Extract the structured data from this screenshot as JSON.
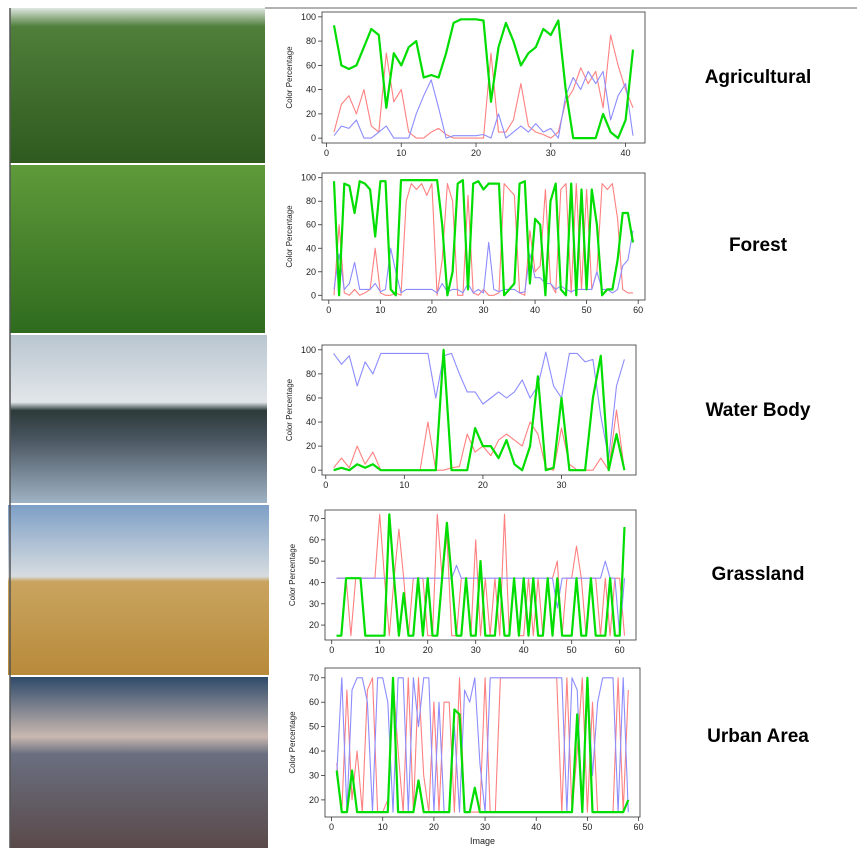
{
  "chart_data": [
    {
      "type": "line",
      "title": "Agricultural",
      "ylabel": "Color Percentage",
      "x": [
        1,
        2,
        3,
        4,
        5,
        6,
        7,
        8,
        9,
        10,
        11,
        12,
        13,
        14,
        15,
        16,
        17,
        18,
        19,
        20,
        21,
        22,
        23,
        24,
        25,
        26,
        27,
        28,
        29,
        30,
        31,
        32,
        33,
        34,
        35,
        36,
        37,
        38,
        39,
        40,
        41
      ],
      "series": [
        {
          "color": "#ff8080",
          "values": [
            5,
            28,
            35,
            20,
            40,
            10,
            5,
            70,
            30,
            40,
            5,
            0,
            0,
            5,
            8,
            3,
            0,
            0,
            0,
            0,
            0,
            70,
            5,
            5,
            15,
            45,
            10,
            5,
            3,
            0,
            5,
            30,
            40,
            58,
            45,
            55,
            25,
            85,
            60,
            40,
            25
          ]
        },
        {
          "color": "#8c8cff",
          "values": [
            2,
            10,
            8,
            15,
            0,
            0,
            5,
            10,
            0,
            0,
            0,
            20,
            35,
            48,
            25,
            0,
            2,
            2,
            2,
            2,
            3,
            0,
            20,
            0,
            5,
            10,
            5,
            12,
            5,
            8,
            0,
            35,
            50,
            40,
            55,
            45,
            55,
            15,
            35,
            45,
            2
          ]
        },
        {
          "color": "#00dd00",
          "values": [
            93,
            60,
            57,
            60,
            75,
            90,
            85,
            25,
            70,
            60,
            75,
            80,
            50,
            52,
            50,
            70,
            95,
            98,
            98,
            98,
            97,
            30,
            75,
            95,
            80,
            60,
            70,
            75,
            90,
            85,
            97,
            40,
            0,
            0,
            0,
            0,
            20,
            5,
            0,
            15,
            73
          ]
        }
      ],
      "xlim": [
        -0.6,
        42.6
      ],
      "xticks": [
        0,
        10,
        20,
        30,
        40
      ],
      "ylim": [
        -4,
        104
      ],
      "yticks": [
        0,
        20,
        40,
        60,
        80,
        100
      ]
    },
    {
      "type": "line",
      "title": "Forest",
      "ylabel": "Color Percentage",
      "x": [
        1,
        2,
        3,
        4,
        5,
        6,
        7,
        8,
        9,
        10,
        11,
        12,
        13,
        14,
        15,
        16,
        17,
        18,
        19,
        20,
        21,
        22,
        23,
        24,
        25,
        26,
        27,
        28,
        29,
        30,
        31,
        32,
        33,
        34,
        35,
        36,
        37,
        38,
        39,
        40,
        41,
        42,
        43,
        44,
        45,
        46,
        47,
        48,
        49,
        50,
        51,
        52,
        53,
        54,
        55,
        56,
        57,
        58,
        59
      ],
      "series": [
        {
          "color": "#ff8080",
          "values": [
            0,
            60,
            2,
            0,
            5,
            0,
            2,
            5,
            40,
            2,
            0,
            0,
            2,
            0,
            80,
            95,
            90,
            95,
            85,
            95,
            0,
            30,
            95,
            80,
            0,
            0,
            85,
            2,
            0,
            5,
            0,
            0,
            2,
            95,
            90,
            85,
            2,
            0,
            55,
            20,
            25,
            90,
            10,
            2,
            90,
            95,
            2,
            95,
            5,
            90,
            5,
            20,
            95,
            90,
            95,
            65,
            5,
            2,
            2
          ]
        },
        {
          "color": "#8c8cff",
          "values": [
            5,
            35,
            5,
            10,
            28,
            5,
            5,
            5,
            10,
            3,
            5,
            40,
            20,
            2,
            5,
            5,
            5,
            5,
            5,
            5,
            2,
            10,
            3,
            5,
            5,
            2,
            10,
            2,
            5,
            2,
            45,
            5,
            3,
            5,
            5,
            5,
            2,
            3,
            35,
            15,
            15,
            10,
            10,
            5,
            8,
            5,
            3,
            5,
            5,
            5,
            5,
            20,
            5,
            5,
            2,
            5,
            25,
            30,
            55
          ]
        },
        {
          "color": "#00dd00",
          "values": [
            97,
            0,
            95,
            93,
            70,
            97,
            95,
            90,
            50,
            97,
            97,
            5,
            0,
            98,
            98,
            98,
            98,
            98,
            98,
            98,
            98,
            60,
            0,
            20,
            95,
            98,
            5,
            95,
            97,
            90,
            95,
            95,
            95,
            0,
            5,
            10,
            95,
            97,
            10,
            65,
            60,
            0,
            80,
            95,
            5,
            0,
            95,
            0,
            90,
            5,
            90,
            60,
            0,
            5,
            5,
            30,
            70,
            70,
            45
          ]
        }
      ],
      "xlim": [
        -1.32,
        61.32
      ],
      "xticks": [
        0,
        10,
        20,
        30,
        40,
        50,
        60
      ],
      "ylim": [
        -4,
        104
      ],
      "yticks": [
        0,
        20,
        40,
        60,
        80,
        100
      ]
    },
    {
      "type": "line",
      "title": "Water Body",
      "ylabel": "Color Percentage",
      "x": [
        1,
        2,
        3,
        4,
        5,
        6,
        7,
        8,
        9,
        10,
        11,
        12,
        13,
        14,
        15,
        16,
        17,
        18,
        19,
        20,
        21,
        22,
        23,
        24,
        25,
        26,
        27,
        28,
        29,
        30,
        31,
        32,
        33,
        34,
        35,
        36,
        37,
        38
      ],
      "series": [
        {
          "color": "#ff8080",
          "values": [
            2,
            10,
            2,
            20,
            5,
            15,
            0,
            0,
            0,
            0,
            0,
            0,
            40,
            0,
            0,
            2,
            3,
            30,
            15,
            20,
            12,
            25,
            30,
            25,
            20,
            40,
            30,
            2,
            0,
            35,
            5,
            0,
            0,
            0,
            10,
            0,
            50,
            0
          ]
        },
        {
          "color": "#8c8cff",
          "values": [
            97,
            88,
            95,
            70,
            90,
            80,
            97,
            97,
            97,
            97,
            97,
            97,
            97,
            60,
            95,
            97,
            80,
            65,
            65,
            55,
            60,
            65,
            60,
            65,
            75,
            60,
            70,
            98,
            70,
            60,
            97,
            97,
            90,
            92,
            45,
            10,
            70,
            92
          ]
        },
        {
          "color": "#00dd00",
          "values": [
            0,
            2,
            0,
            5,
            2,
            5,
            0,
            0,
            0,
            0,
            0,
            0,
            0,
            0,
            100,
            0,
            0,
            0,
            35,
            20,
            20,
            10,
            25,
            5,
            0,
            20,
            78,
            0,
            2,
            60,
            0,
            0,
            0,
            60,
            95,
            0,
            30,
            0
          ]
        }
      ],
      "xlim": [
        -0.48,
        39.48
      ],
      "xticks": [
        0,
        10,
        20,
        30
      ],
      "ylim": [
        -4,
        104
      ],
      "yticks": [
        0,
        20,
        40,
        60,
        80,
        100
      ]
    },
    {
      "type": "line",
      "title": "Grassland",
      "ylabel": "Color Percentage",
      "x": [
        1,
        2,
        3,
        4,
        5,
        6,
        7,
        8,
        9,
        10,
        11,
        12,
        13,
        14,
        15,
        16,
        17,
        18,
        19,
        20,
        21,
        22,
        23,
        24,
        25,
        26,
        27,
        28,
        29,
        30,
        31,
        32,
        33,
        34,
        35,
        36,
        37,
        38,
        39,
        40,
        41,
        42,
        43,
        44,
        45,
        46,
        47,
        48,
        49,
        50,
        51,
        52,
        53,
        54,
        55,
        56,
        57,
        58,
        59,
        60,
        61
      ],
      "series": [
        {
          "color": "#ff8080",
          "values": [
            42,
            42,
            42,
            15,
            42,
            42,
            42,
            42,
            42,
            72,
            42,
            15,
            42,
            65,
            42,
            15,
            42,
            42,
            42,
            15,
            15,
            72,
            42,
            62,
            15,
            15,
            42,
            42,
            15,
            60,
            15,
            42,
            15,
            42,
            15,
            72,
            15,
            42,
            15,
            15,
            42,
            15,
            42,
            15,
            42,
            42,
            50,
            15,
            42,
            42,
            57,
            42,
            15,
            42,
            42,
            15,
            42,
            15,
            42,
            42,
            15
          ]
        },
        {
          "color": "#8c8cff",
          "values": [
            42,
            42,
            42,
            42,
            42,
            42,
            42,
            42,
            42,
            42,
            42,
            42,
            42,
            42,
            42,
            42,
            42,
            42,
            42,
            42,
            42,
            42,
            42,
            42,
            42,
            48,
            42,
            42,
            42,
            42,
            42,
            42,
            42,
            42,
            42,
            42,
            42,
            42,
            42,
            42,
            42,
            42,
            42,
            42,
            42,
            42,
            28,
            42,
            42,
            42,
            42,
            42,
            42,
            42,
            42,
            42,
            50,
            42,
            42,
            15,
            42
          ]
        },
        {
          "color": "#00dd00",
          "values": [
            15,
            15,
            42,
            42,
            42,
            42,
            15,
            15,
            15,
            15,
            15,
            72,
            42,
            15,
            35,
            15,
            15,
            42,
            15,
            42,
            15,
            15,
            42,
            68,
            42,
            15,
            15,
            42,
            15,
            15,
            50,
            15,
            15,
            15,
            42,
            15,
            15,
            42,
            15,
            42,
            15,
            42,
            15,
            15,
            42,
            15,
            42,
            15,
            15,
            15,
            42,
            15,
            15,
            42,
            15,
            15,
            15,
            42,
            15,
            15,
            66
          ]
        }
      ],
      "xlim": [
        -1.4,
        63.4
      ],
      "xticks": [
        0,
        10,
        20,
        30,
        40,
        50,
        60
      ],
      "ylim": [
        13,
        74
      ],
      "yticks": [
        20,
        30,
        40,
        50,
        60,
        70
      ]
    },
    {
      "type": "line",
      "title": "Urban Area",
      "ylabel": "Color Percentage",
      "xlabel": "Image",
      "x": [
        1,
        2,
        3,
        4,
        5,
        6,
        7,
        8,
        9,
        10,
        11,
        12,
        13,
        14,
        15,
        16,
        17,
        18,
        19,
        20,
        21,
        22,
        23,
        24,
        25,
        26,
        27,
        28,
        29,
        30,
        31,
        32,
        33,
        34,
        35,
        36,
        37,
        38,
        39,
        40,
        41,
        42,
        43,
        44,
        45,
        46,
        47,
        48,
        49,
        50,
        51,
        52,
        53,
        54,
        55,
        56,
        57,
        58
      ],
      "series": [
        {
          "color": "#ff8080",
          "values": [
            35,
            15,
            65,
            20,
            40,
            15,
            65,
            70,
            15,
            15,
            20,
            70,
            40,
            15,
            70,
            15,
            70,
            30,
            15,
            60,
            15,
            60,
            60,
            15,
            70,
            15,
            15,
            15,
            15,
            70,
            15,
            15,
            70,
            70,
            70,
            70,
            70,
            70,
            70,
            70,
            70,
            70,
            70,
            70,
            15,
            70,
            15,
            40,
            70,
            15,
            60,
            15,
            15,
            15,
            15,
            70,
            15,
            65
          ]
        },
        {
          "color": "#8c8cff",
          "values": [
            30,
            70,
            15,
            65,
            70,
            70,
            60,
            15,
            70,
            70,
            60,
            15,
            70,
            70,
            15,
            70,
            50,
            70,
            70,
            15,
            60,
            15,
            15,
            50,
            15,
            65,
            60,
            70,
            35,
            15,
            70,
            70,
            70,
            70,
            70,
            70,
            70,
            70,
            70,
            70,
            70,
            70,
            70,
            70,
            70,
            15,
            70,
            65,
            15,
            70,
            30,
            60,
            70,
            70,
            70,
            15,
            70,
            15
          ]
        },
        {
          "color": "#00dd00",
          "values": [
            32,
            15,
            15,
            32,
            15,
            15,
            15,
            15,
            15,
            15,
            15,
            70,
            15,
            15,
            15,
            15,
            28,
            15,
            15,
            15,
            15,
            15,
            15,
            57,
            55,
            15,
            15,
            25,
            15,
            15,
            15,
            15,
            15,
            15,
            15,
            15,
            15,
            15,
            15,
            15,
            15,
            15,
            15,
            15,
            15,
            15,
            15,
            55,
            15,
            70,
            15,
            15,
            15,
            15,
            15,
            15,
            15,
            20
          ]
        }
      ],
      "xlim": [
        -1.28,
        60.28
      ],
      "xticks": [
        0,
        10,
        20,
        30,
        40,
        50,
        60
      ],
      "ylim": [
        13,
        74
      ],
      "yticks": [
        20,
        30,
        40,
        50,
        60,
        70
      ]
    }
  ]
}
